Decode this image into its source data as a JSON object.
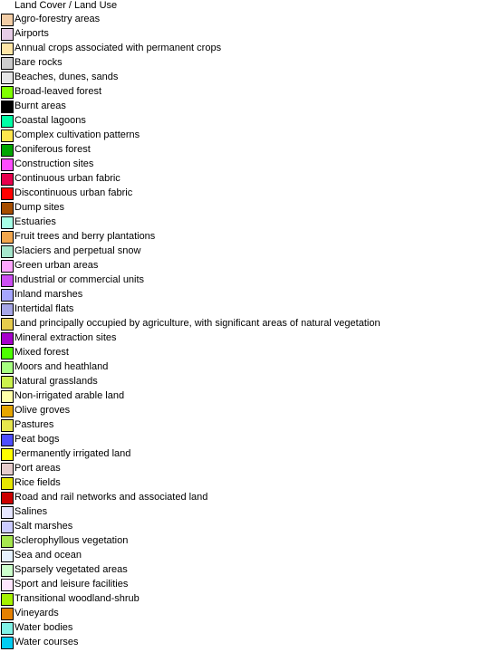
{
  "legend": {
    "title": "Land Cover / Land Use",
    "items": [
      {
        "label": "Agro-forestry areas",
        "color": "#f2cda6"
      },
      {
        "label": "Airports",
        "color": "#e6cce6"
      },
      {
        "label": "Annual crops associated with permanent crops",
        "color": "#ffe6a6"
      },
      {
        "label": "Bare rocks",
        "color": "#cccccc"
      },
      {
        "label": "Beaches, dunes, sands",
        "color": "#e6e6e6"
      },
      {
        "label": "Broad-leaved forest",
        "color": "#80ff00"
      },
      {
        "label": "Burnt areas",
        "color": "#000000"
      },
      {
        "label": "Coastal lagoons",
        "color": "#00ffa6"
      },
      {
        "label": "Complex cultivation patterns",
        "color": "#ffe64d"
      },
      {
        "label": "Coniferous forest",
        "color": "#00a600"
      },
      {
        "label": "Construction sites",
        "color": "#ff4dff"
      },
      {
        "label": "Continuous urban fabric",
        "color": "#e6004d"
      },
      {
        "label": "Discontinuous urban fabric",
        "color": "#ff0000"
      },
      {
        "label": "Dump sites",
        "color": "#a64d00"
      },
      {
        "label": "Estuaries",
        "color": "#a6ffe6"
      },
      {
        "label": "Fruit trees and berry plantations",
        "color": "#f2a64d"
      },
      {
        "label": "Glaciers and perpetual snow",
        "color": "#a6e6cc"
      },
      {
        "label": "Green urban areas",
        "color": "#ffa6ff"
      },
      {
        "label": "Industrial or commercial units",
        "color": "#cc4df2"
      },
      {
        "label": "Inland marshes",
        "color": "#a6a6ff"
      },
      {
        "label": "Intertidal flats",
        "color": "#a6a6e6"
      },
      {
        "label": "Land principally occupied by agriculture, with significant areas of natural vegetation",
        "color": "#e6cc4d"
      },
      {
        "label": "Mineral extraction sites",
        "color": "#a600cc"
      },
      {
        "label": "Mixed forest",
        "color": "#4dff00"
      },
      {
        "label": "Moors and heathland",
        "color": "#a6ff80"
      },
      {
        "label": "Natural grasslands",
        "color": "#ccf24d"
      },
      {
        "label": "Non-irrigated arable land",
        "color": "#ffffa8"
      },
      {
        "label": "Olive groves",
        "color": "#e6a600"
      },
      {
        "label": "Pastures",
        "color": "#e6e64d"
      },
      {
        "label": "Peat bogs",
        "color": "#4d4dff"
      },
      {
        "label": "Permanently irrigated land",
        "color": "#ffff00"
      },
      {
        "label": "Port areas",
        "color": "#e6cccc"
      },
      {
        "label": "Rice fields",
        "color": "#e6e600"
      },
      {
        "label": "Road and rail networks and associated land",
        "color": "#cc0000"
      },
      {
        "label": "Salines",
        "color": "#e6e6ff"
      },
      {
        "label": "Salt marshes",
        "color": "#ccccff"
      },
      {
        "label": "Sclerophyllous vegetation",
        "color": "#a6e64d"
      },
      {
        "label": "Sea and ocean",
        "color": "#e6f2ff"
      },
      {
        "label": "Sparsely vegetated areas",
        "color": "#ccffcc"
      },
      {
        "label": "Sport and leisure facilities",
        "color": "#ffe6ff"
      },
      {
        "label": "Transitional woodland-shrub",
        "color": "#a6f200"
      },
      {
        "label": "Vineyards",
        "color": "#e68000"
      },
      {
        "label": "Water bodies",
        "color": "#80f2e6"
      },
      {
        "label": "Water courses",
        "color": "#00ccf2"
      }
    ]
  }
}
